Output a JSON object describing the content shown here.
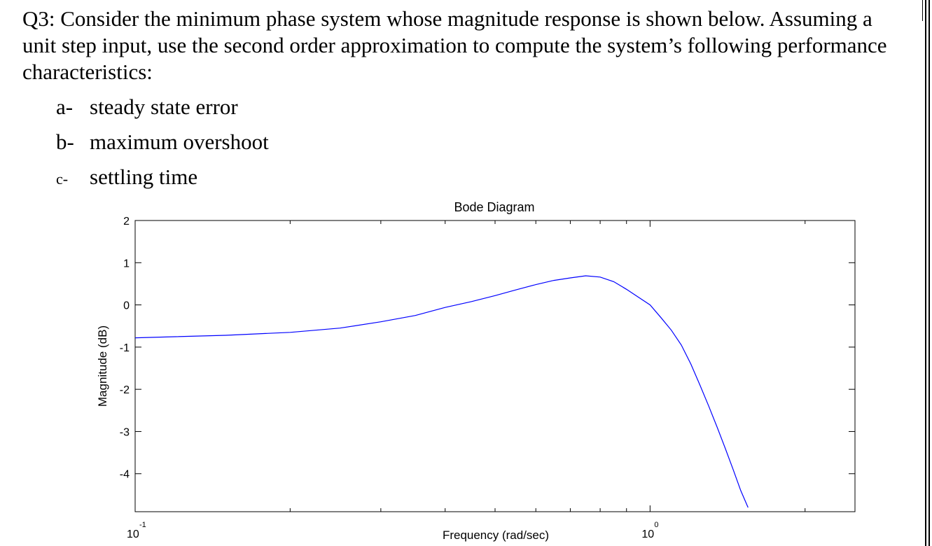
{
  "question": {
    "lines": [
      "Q3: Consider the minimum phase system whose magnitude response is shown below. Assuming a",
      "unit step input, use the second order approximation to compute the system’s following performance",
      "characteristics:"
    ],
    "items": [
      {
        "marker": "a-",
        "text": "steady state error"
      },
      {
        "marker": "b-",
        "text": "maximum overshoot"
      },
      {
        "marker": "c-",
        "text": "settling time"
      }
    ]
  },
  "chart_data": {
    "type": "line",
    "title": "Bode Diagram",
    "xlabel": "Frequency  (rad/sec)",
    "ylabel": "Magnitude (dB)",
    "xscale": "log",
    "xlim": [
      0.1,
      2.5
    ],
    "ylim": [
      -4.9,
      2
    ],
    "yticks": [
      2,
      1,
      0,
      -1,
      -2,
      -3,
      -4
    ],
    "xticklabels": [
      {
        "value": 0.1,
        "base": "10",
        "exp": "-1"
      },
      {
        "value": 1,
        "base": "10",
        "exp": "0"
      }
    ],
    "grid": false,
    "series": [
      {
        "color": "#0000ff",
        "x": [
          0.1,
          0.15,
          0.2,
          0.25,
          0.3,
          0.35,
          0.4,
          0.45,
          0.5,
          0.55,
          0.6,
          0.65,
          0.7,
          0.75,
          0.8,
          0.85,
          0.9,
          0.95,
          1.0,
          1.05,
          1.1,
          1.15,
          1.2,
          1.25,
          1.3,
          1.35,
          1.4,
          1.45,
          1.5,
          1.55
        ],
        "y": [
          -0.78,
          -0.72,
          -0.65,
          -0.55,
          -0.4,
          -0.25,
          -0.06,
          0.08,
          0.22,
          0.36,
          0.48,
          0.58,
          0.64,
          0.69,
          0.66,
          0.55,
          0.37,
          0.18,
          0.0,
          -0.3,
          -0.6,
          -0.95,
          -1.4,
          -1.9,
          -2.4,
          -2.9,
          -3.4,
          -3.9,
          -4.4,
          -4.8
        ]
      }
    ]
  }
}
